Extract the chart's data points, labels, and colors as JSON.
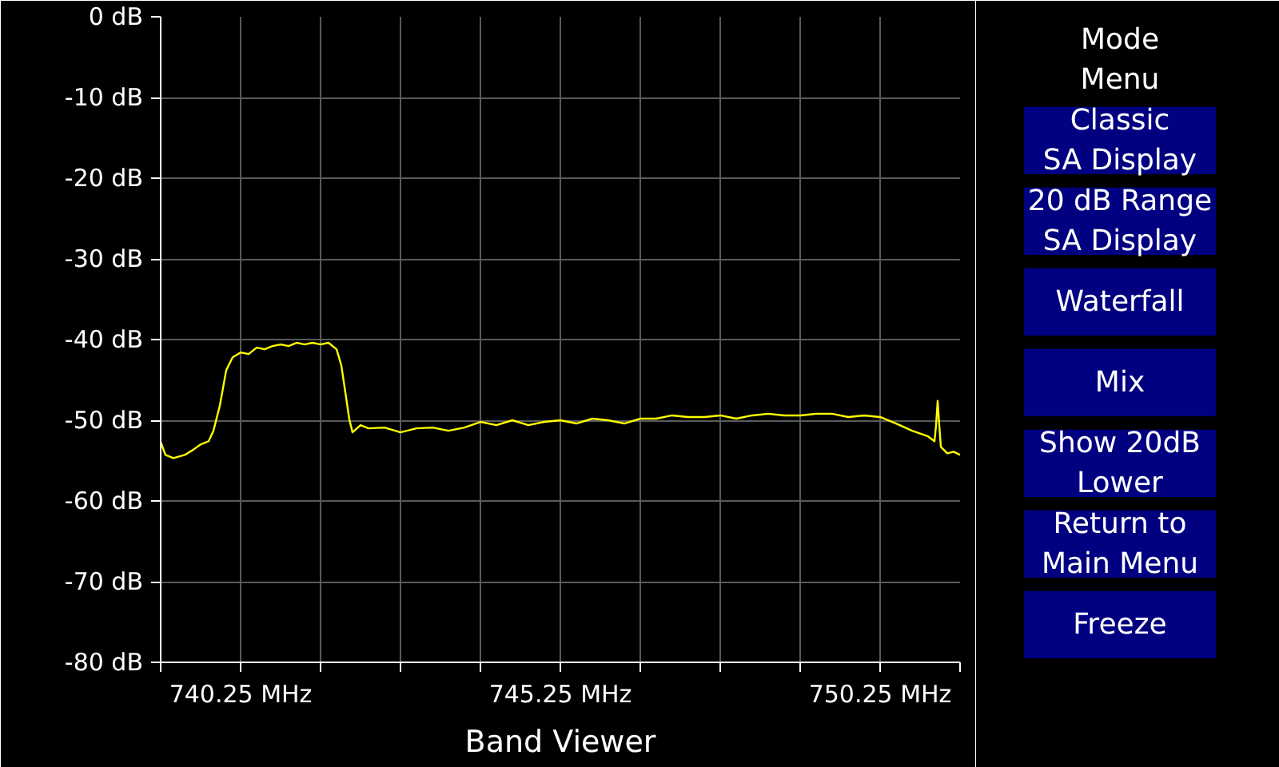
{
  "chart_data": {
    "type": "line",
    "title": "Band Viewer",
    "x": [
      739,
      739.075,
      739.2,
      739.375,
      739.5,
      739.625,
      739.75,
      739.825,
      739.925,
      740.025,
      740.125,
      740.25,
      740.375,
      740.5,
      740.625,
      740.75,
      740.875,
      741,
      741.125,
      741.25,
      741.375,
      741.5,
      741.625,
      741.75,
      741.825,
      741.9,
      741.95,
      742,
      742.125,
      742.25,
      742.5,
      742.75,
      743,
      743.25,
      743.5,
      743.75,
      744,
      744.25,
      744.5,
      744.75,
      745,
      745.25,
      745.5,
      745.75,
      746,
      746.25,
      746.5,
      746.75,
      747,
      747.25,
      747.5,
      747.75,
      748,
      748.25,
      748.5,
      748.75,
      749,
      749.25,
      749.5,
      749.75,
      750,
      750.25,
      750.5,
      750.75,
      751,
      751.1,
      751.125,
      751.15,
      751.175,
      751.2,
      751.3,
      751.4,
      751.5
    ],
    "series": [
      {
        "color": "#ffff00",
        "values": [
          -52.7,
          -54.3,
          -54.7,
          -54.3,
          -53.7,
          -53,
          -52.6,
          -51.3,
          -48.2,
          -43.8,
          -42.2,
          -41.6,
          -41.8,
          -41,
          -41.2,
          -40.8,
          -40.6,
          -40.8,
          -40.4,
          -40.6,
          -40.4,
          -40.6,
          -40.4,
          -41.2,
          -43.2,
          -47.2,
          -49.9,
          -51.5,
          -50.6,
          -51,
          -50.9,
          -51.5,
          -51,
          -50.9,
          -51.3,
          -50.9,
          -50.2,
          -50.6,
          -50,
          -50.6,
          -50.2,
          -50,
          -50.4,
          -49.8,
          -50,
          -50.4,
          -49.8,
          -49.8,
          -49.4,
          -49.6,
          -49.6,
          -49.4,
          -49.8,
          -49.4,
          -49.2,
          -49.4,
          -49.4,
          -49.2,
          -49.2,
          -49.6,
          -49.4,
          -49.6,
          -50.4,
          -51.3,
          -52,
          -52.6,
          -50.6,
          -47.6,
          -50.6,
          -53.3,
          -54.1,
          -53.9,
          -54.3
        ]
      }
    ],
    "xlim": [
      739,
      751.5
    ],
    "xticks": [
      {
        "value": 739,
        "label": null
      },
      {
        "value": 740.25,
        "label": "740.25 MHz"
      },
      {
        "value": 741.5,
        "label": null
      },
      {
        "value": 742.75,
        "label": null
      },
      {
        "value": 744,
        "label": null
      },
      {
        "value": 745.25,
        "label": "745.25 MHz"
      },
      {
        "value": 746.5,
        "label": null
      },
      {
        "value": 747.75,
        "label": null
      },
      {
        "value": 749,
        "label": null
      },
      {
        "value": 750.25,
        "label": "750.25 MHz"
      },
      {
        "value": 751.5,
        "label": null
      }
    ],
    "ylim": [
      -80,
      0
    ],
    "yticks": [
      {
        "value": 0,
        "label": "0 dB"
      },
      {
        "value": -10,
        "label": "-10 dB"
      },
      {
        "value": -20,
        "label": "-20 dB"
      },
      {
        "value": -30,
        "label": "-30 dB"
      },
      {
        "value": -40,
        "label": "-40 dB"
      },
      {
        "value": -50,
        "label": "-50 dB"
      },
      {
        "value": -60,
        "label": "-60 dB"
      },
      {
        "value": -70,
        "label": "-70 dB"
      },
      {
        "value": -80,
        "label": "-80 dB"
      }
    ],
    "grid": true,
    "line_style": "solid",
    "annotations": [
      "Mode\nMenu",
      "Classic\nSA Display",
      "20 dB Range\nSA Display",
      "Waterfall",
      "Mix",
      "Show 20dB\nLower",
      "Return to\nMain Menu",
      "Freeze"
    ]
  }
}
